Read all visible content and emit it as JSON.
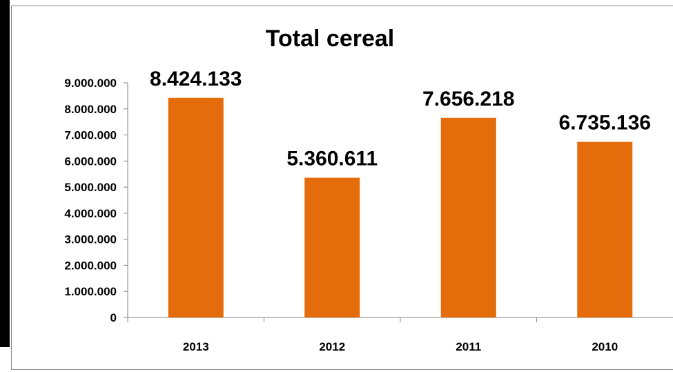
{
  "chart_data": {
    "type": "bar",
    "title": "Total cereal",
    "xlabel": "",
    "ylabel": "",
    "categories": [
      "2013",
      "2012",
      "2011",
      "2010"
    ],
    "values": [
      8424133,
      5360611,
      7656218,
      6735136
    ],
    "data_labels": [
      "8.424.133",
      "5.360.611",
      "7.656.218",
      "6.735.136"
    ],
    "ylim": [
      0,
      9000000
    ],
    "y_ticks": [
      0,
      1000000,
      2000000,
      3000000,
      4000000,
      5000000,
      6000000,
      7000000,
      8000000,
      9000000
    ],
    "y_tick_labels": [
      "0",
      "1.000.000",
      "2.000.000",
      "3.000.000",
      "4.000.000",
      "5.000.000",
      "6.000.000",
      "7.000.000",
      "8.000.000",
      "9.000.000"
    ],
    "grid": false,
    "legend": "none",
    "bar_color": "#E46C0A"
  }
}
